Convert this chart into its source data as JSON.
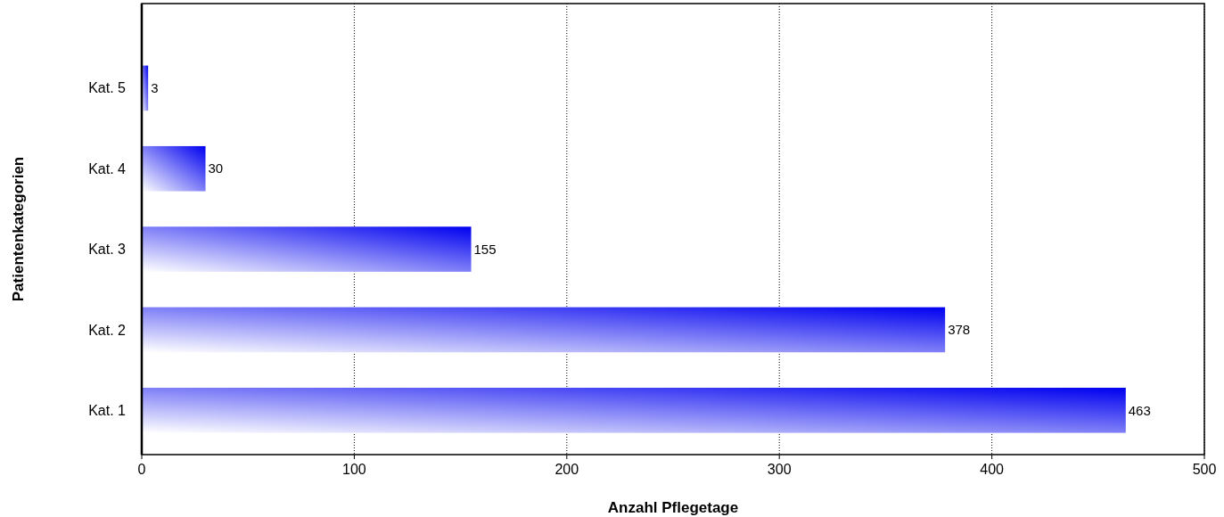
{
  "chart_data": {
    "type": "bar",
    "orientation": "horizontal",
    "categories": [
      "Kat. 5",
      "Kat. 4",
      "Kat. 3",
      "Kat. 2",
      "Kat. 1"
    ],
    "values": [
      3,
      30,
      155,
      378,
      463
    ],
    "color": "#0000f0",
    "xlim": [
      0,
      500
    ],
    "xticks": [
      0,
      100,
      200,
      300,
      400,
      500
    ],
    "grid": "x",
    "data_labels": true,
    "xlabel": "Anzahl Pflegetage",
    "ylabel": "Patientenkategorien"
  }
}
